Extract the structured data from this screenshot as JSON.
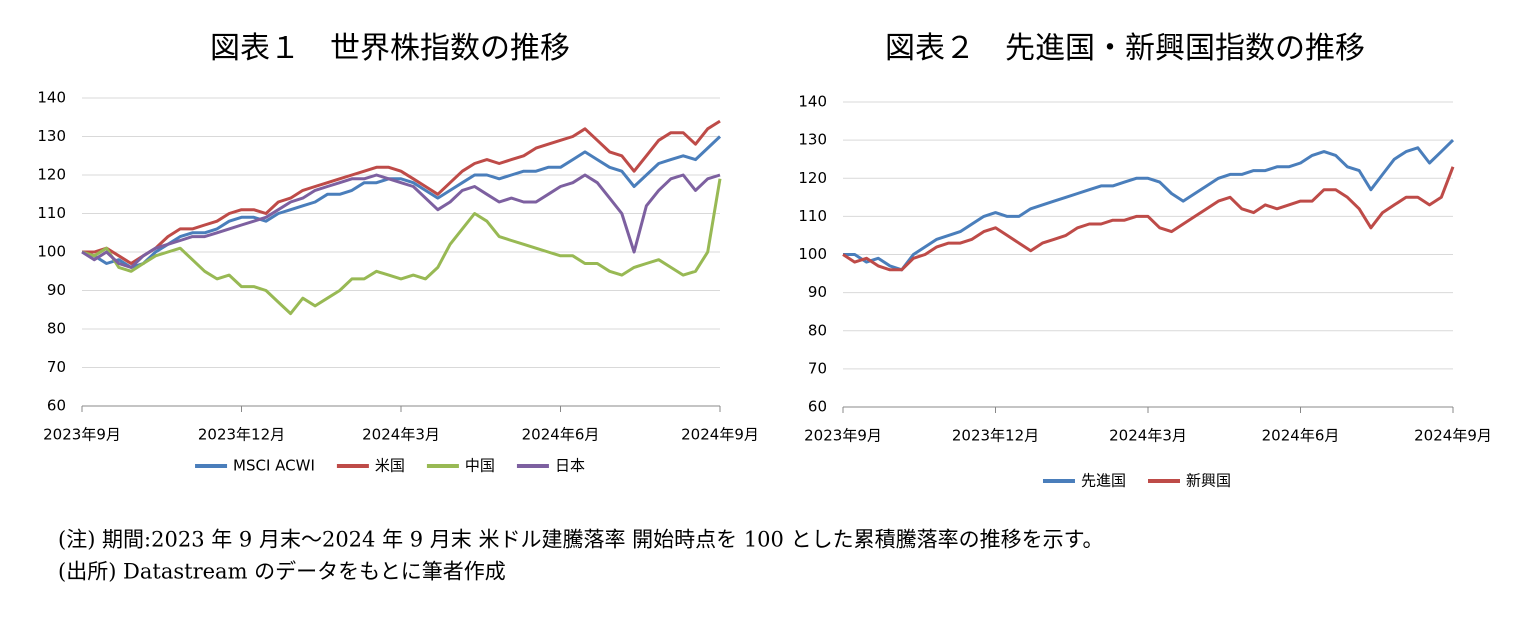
{
  "chart_data": [
    {
      "type": "line",
      "title": "図表１　世界株指数の推移",
      "categories": [
        "2023年9月",
        null,
        null,
        null,
        null,
        null,
        null,
        null,
        null,
        null,
        null,
        null,
        null,
        "2023年12月",
        null,
        null,
        null,
        null,
        null,
        null,
        null,
        null,
        null,
        null,
        null,
        null,
        "2024年3月",
        null,
        null,
        null,
        null,
        null,
        null,
        null,
        null,
        null,
        null,
        null,
        null,
        "2024年6月",
        null,
        null,
        null,
        null,
        null,
        null,
        null,
        null,
        null,
        null,
        null,
        null,
        "2024年9月"
      ],
      "ylim": [
        60,
        140
      ],
      "yticks": [
        60,
        70,
        80,
        90,
        100,
        110,
        120,
        130,
        140
      ],
      "grid": true,
      "series": [
        {
          "name": "MSCI ACWI",
          "color": "#4a7ebb",
          "values": [
            100,
            99,
            97,
            98,
            96,
            97,
            100,
            102,
            104,
            105,
            105,
            106,
            108,
            109,
            109,
            108,
            110,
            111,
            112,
            113,
            115,
            115,
            116,
            118,
            118,
            119,
            119,
            118,
            116,
            114,
            116,
            118,
            120,
            120,
            119,
            120,
            121,
            121,
            122,
            122,
            124,
            126,
            124,
            122,
            121,
            117,
            120,
            123,
            124,
            125,
            124,
            127,
            130
          ]
        },
        {
          "name": "米国",
          "color": "#be4b48",
          "values": [
            100,
            100,
            101,
            99,
            97,
            99,
            101,
            104,
            106,
            106,
            107,
            108,
            110,
            111,
            111,
            110,
            113,
            114,
            116,
            117,
            118,
            119,
            120,
            121,
            122,
            122,
            121,
            119,
            117,
            115,
            118,
            121,
            123,
            124,
            123,
            124,
            125,
            127,
            128,
            129,
            130,
            132,
            129,
            126,
            125,
            121,
            125,
            129,
            131,
            131,
            128,
            132,
            134
          ]
        },
        {
          "name": "中国",
          "color": "#98b954",
          "values": [
            100,
            99,
            101,
            96,
            95,
            97,
            99,
            100,
            101,
            98,
            95,
            93,
            94,
            91,
            91,
            90,
            87,
            84,
            88,
            86,
            88,
            90,
            93,
            93,
            95,
            94,
            93,
            94,
            93,
            96,
            102,
            106,
            110,
            108,
            104,
            103,
            102,
            101,
            100,
            99,
            99,
            97,
            97,
            95,
            94,
            96,
            97,
            98,
            96,
            94,
            95,
            100,
            119
          ]
        },
        {
          "name": "日本",
          "color": "#7d60a0",
          "values": [
            100,
            98,
            100,
            97,
            96,
            99,
            101,
            102,
            103,
            104,
            104,
            105,
            106,
            107,
            108,
            109,
            111,
            113,
            114,
            116,
            117,
            118,
            119,
            119,
            120,
            119,
            118,
            117,
            114,
            111,
            113,
            116,
            117,
            115,
            113,
            114,
            113,
            113,
            115,
            117,
            118,
            120,
            118,
            114,
            110,
            100,
            112,
            116,
            119,
            120,
            116,
            119,
            120
          ]
        }
      ]
    },
    {
      "type": "line",
      "title": "図表２　先進国・新興国指数の推移",
      "categories": [
        "2023年9月",
        null,
        null,
        null,
        null,
        null,
        null,
        null,
        null,
        null,
        null,
        null,
        null,
        "2023年12月",
        null,
        null,
        null,
        null,
        null,
        null,
        null,
        null,
        null,
        null,
        null,
        null,
        "2024年3月",
        null,
        null,
        null,
        null,
        null,
        null,
        null,
        null,
        null,
        null,
        null,
        null,
        "2024年6月",
        null,
        null,
        null,
        null,
        null,
        null,
        null,
        null,
        null,
        null,
        null,
        null,
        "2024年9月"
      ],
      "ylim": [
        60,
        140
      ],
      "yticks": [
        60,
        70,
        80,
        90,
        100,
        110,
        120,
        130,
        140
      ],
      "grid": true,
      "series": [
        {
          "name": "先進国",
          "color": "#4a7ebb",
          "values": [
            100,
            100,
            98,
            99,
            97,
            96,
            100,
            102,
            104,
            105,
            106,
            108,
            110,
            111,
            110,
            110,
            112,
            113,
            114,
            115,
            116,
            117,
            118,
            118,
            119,
            120,
            120,
            119,
            116,
            114,
            116,
            118,
            120,
            121,
            121,
            122,
            122,
            123,
            123,
            124,
            126,
            127,
            126,
            123,
            122,
            117,
            121,
            125,
            127,
            128,
            124,
            127,
            130
          ]
        },
        {
          "name": "新興国",
          "color": "#be4b48",
          "values": [
            100,
            98,
            99,
            97,
            96,
            96,
            99,
            100,
            102,
            103,
            103,
            104,
            106,
            107,
            105,
            103,
            101,
            103,
            104,
            105,
            107,
            108,
            108,
            109,
            109,
            110,
            110,
            107,
            106,
            108,
            110,
            112,
            114,
            115,
            112,
            111,
            113,
            112,
            113,
            114,
            114,
            117,
            117,
            115,
            112,
            107,
            111,
            113,
            115,
            115,
            113,
            115,
            123
          ]
        }
      ]
    }
  ],
  "notes": [
    "(注) 期間:2023 年 9 月末～2024 年 9 月末 米ドル建騰落率 開始時点を 100 とした累積騰落率の推移を示す。",
    "(出所) Datastream のデータをもとに筆者作成"
  ]
}
